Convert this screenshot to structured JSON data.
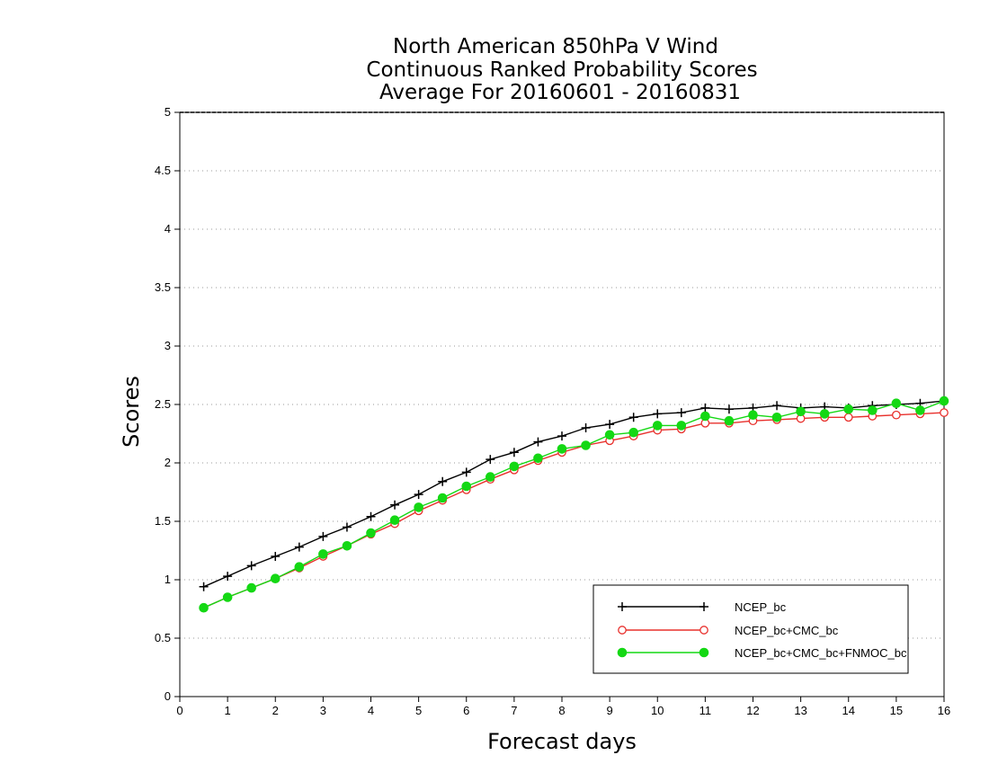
{
  "chart_data": {
    "type": "line",
    "title": [
      "North American 850hPa V Wind",
      "Continuous Ranked Probability Scores",
      "Average For 20160601 - 20160831"
    ],
    "xlabel": "Forecast days",
    "ylabel": "Scores",
    "xlim": [
      0,
      16
    ],
    "ylim": [
      0,
      5
    ],
    "xticks": [
      0,
      1,
      2,
      3,
      4,
      5,
      6,
      7,
      8,
      9,
      10,
      11,
      12,
      13,
      14,
      15,
      16
    ],
    "xtick_labels": [
      "0",
      "1",
      "2",
      "3",
      "4",
      "5",
      "6",
      "7",
      "8",
      "9",
      "10",
      "11",
      "12",
      "13",
      "14",
      "15",
      "16"
    ],
    "yticks": [
      0,
      0.5,
      1,
      1.5,
      2,
      2.5,
      3,
      3.5,
      4,
      4.5,
      5
    ],
    "ytick_labels": [
      "0",
      "0.5",
      "1",
      "1.5",
      "2",
      "2.5",
      "3",
      "3.5",
      "4",
      "4.5",
      "5"
    ],
    "grid": "horizontal dotted",
    "legend_position": "bottom-right",
    "x": [
      0.5,
      1,
      1.5,
      2,
      2.5,
      3,
      3.5,
      4,
      4.5,
      5,
      5.5,
      6,
      6.5,
      7,
      7.5,
      8,
      8.5,
      9,
      9.5,
      10,
      10.5,
      11,
      11.5,
      12,
      12.5,
      13,
      13.5,
      14,
      14.5,
      15,
      15.5,
      16
    ],
    "series": [
      {
        "name": "NCEP_bc",
        "color": "#000000",
        "marker": "plus",
        "values": [
          0.94,
          1.03,
          1.12,
          1.2,
          1.28,
          1.37,
          1.45,
          1.54,
          1.64,
          1.73,
          1.84,
          1.92,
          2.03,
          2.09,
          2.18,
          2.23,
          2.3,
          2.33,
          2.39,
          2.42,
          2.43,
          2.47,
          2.46,
          2.47,
          2.49,
          2.47,
          2.48,
          2.47,
          2.49,
          2.5,
          2.51,
          2.53
        ]
      },
      {
        "name": "NCEP_bc+CMC_bc",
        "color": "#e8302c",
        "marker": "open-circle",
        "values": [
          0.76,
          0.85,
          0.93,
          1.01,
          1.1,
          1.2,
          1.29,
          1.39,
          1.48,
          1.59,
          1.68,
          1.77,
          1.86,
          1.94,
          2.02,
          2.09,
          2.15,
          2.19,
          2.23,
          2.28,
          2.29,
          2.34,
          2.34,
          2.36,
          2.37,
          2.38,
          2.39,
          2.39,
          2.4,
          2.41,
          2.42,
          2.43
        ]
      },
      {
        "name": "NCEP_bc+CMC_bc+FNMOC_bc",
        "color": "#14d814",
        "marker": "filled-circle",
        "values": [
          0.76,
          0.85,
          0.93,
          1.01,
          1.11,
          1.22,
          1.29,
          1.4,
          1.51,
          1.62,
          1.7,
          1.8,
          1.88,
          1.97,
          2.04,
          2.12,
          2.15,
          2.24,
          2.26,
          2.32,
          2.32,
          2.4,
          2.36,
          2.41,
          2.39,
          2.44,
          2.42,
          2.46,
          2.45,
          2.51,
          2.45,
          2.53
        ]
      }
    ]
  }
}
